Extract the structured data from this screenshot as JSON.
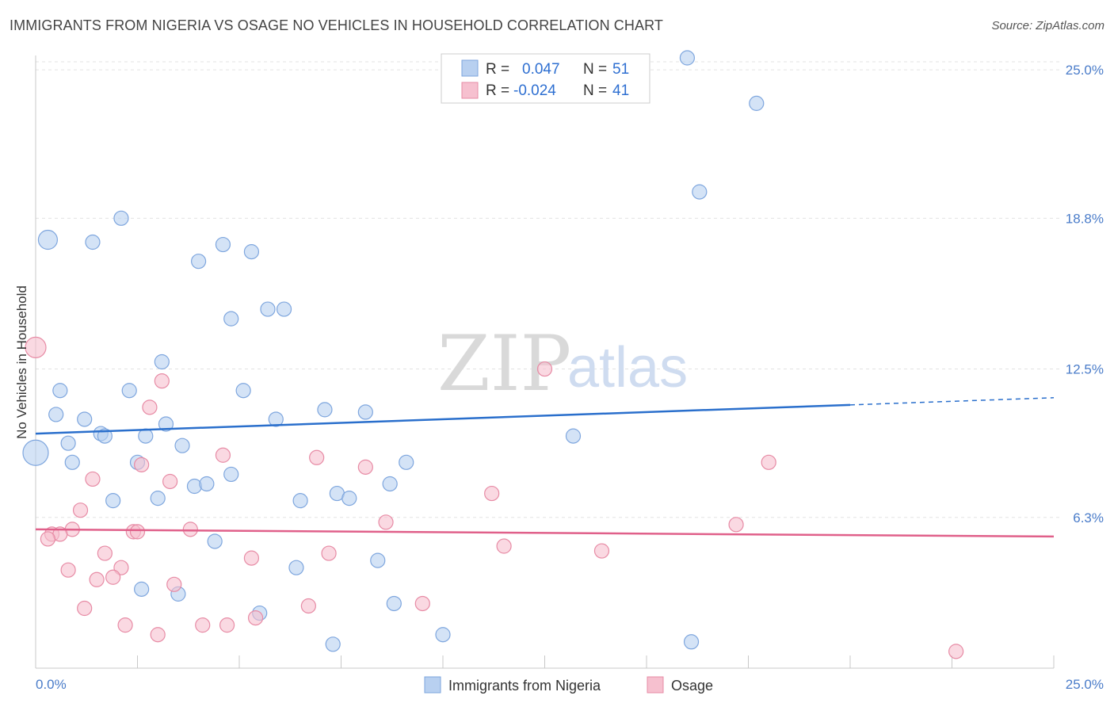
{
  "title": "IMMIGRANTS FROM NIGERIA VS OSAGE NO VEHICLES IN HOUSEHOLD CORRELATION CHART",
  "source": "Source: ZipAtlas.com",
  "watermark": {
    "part1": "ZIP",
    "part2": "atlas"
  },
  "colors": {
    "blue_fill": "#b8d0f0",
    "blue_stroke": "#7ea6de",
    "blue_line": "#2a6fcc",
    "pink_fill": "#f6c0cf",
    "pink_stroke": "#e78ba5",
    "pink_line": "#e0608a",
    "grid": "#e3e3e3",
    "axis_text": "#4a7cc9"
  },
  "legend": {
    "rows": [
      {
        "r_label": "R =",
        "r_value": "0.047",
        "n_label": "N =",
        "n_value": "51"
      },
      {
        "r_label": "R =",
        "r_value": "-0.024",
        "n_label": "N =",
        "n_value": "41"
      }
    ]
  },
  "chart_data": {
    "type": "scatter",
    "title": "IMMIGRANTS FROM NIGERIA VS OSAGE NO VEHICLES IN HOUSEHOLD CORRELATION CHART",
    "xlabel": "",
    "ylabel": "No Vehicles in Household",
    "xlim": [
      0,
      25
    ],
    "ylim": [
      0,
      25.6
    ],
    "x_tick_labels": [
      "0.0%",
      "25.0%"
    ],
    "y_ticks": [
      6.3,
      12.5,
      18.8,
      25.0
    ],
    "y_tick_labels": [
      "6.3%",
      "12.5%",
      "18.8%",
      "25.0%"
    ],
    "grid": true,
    "legend_position": "top-center",
    "series": [
      {
        "name": "Immigrants from Nigeria",
        "color": "#b8d0f0",
        "trend": {
          "x": [
            0,
            20
          ],
          "y": [
            9.8,
            11.0
          ],
          "dashed_extension": [
            20,
            25
          ]
        },
        "points": [
          [
            0.3,
            17.9,
            12
          ],
          [
            1.4,
            17.8,
            9
          ],
          [
            2.1,
            18.8,
            9
          ],
          [
            4.6,
            17.7,
            9
          ],
          [
            5.3,
            17.4,
            9
          ],
          [
            4.0,
            17.0,
            9
          ],
          [
            16.3,
            19.9,
            9
          ],
          [
            16.0,
            25.5,
            9
          ],
          [
            17.7,
            23.6,
            9
          ],
          [
            0.6,
            11.6,
            9
          ],
          [
            2.3,
            11.6,
            9
          ],
          [
            5.1,
            11.6,
            9
          ],
          [
            3.1,
            12.8,
            9
          ],
          [
            4.8,
            14.6,
            9
          ],
          [
            5.7,
            15.0,
            9
          ],
          [
            6.1,
            15.0,
            9
          ],
          [
            0.5,
            10.6,
            9
          ],
          [
            1.2,
            10.4,
            9
          ],
          [
            3.2,
            10.2,
            9
          ],
          [
            7.1,
            10.8,
            9
          ],
          [
            8.1,
            10.7,
            9
          ],
          [
            5.9,
            10.4,
            9
          ],
          [
            0.0,
            9.0,
            16
          ],
          [
            0.8,
            9.4,
            9
          ],
          [
            1.6,
            9.8,
            9
          ],
          [
            1.7,
            9.7,
            9
          ],
          [
            2.7,
            9.7,
            9
          ],
          [
            3.6,
            9.3,
            9
          ],
          [
            0.9,
            8.6,
            9
          ],
          [
            2.5,
            8.6,
            9
          ],
          [
            9.1,
            8.6,
            9
          ],
          [
            4.8,
            8.1,
            9
          ],
          [
            3.9,
            7.6,
            9
          ],
          [
            4.2,
            7.7,
            9
          ],
          [
            8.7,
            7.7,
            9
          ],
          [
            7.4,
            7.3,
            9
          ],
          [
            1.9,
            7.0,
            9
          ],
          [
            3.0,
            7.1,
            9
          ],
          [
            6.5,
            7.0,
            9
          ],
          [
            7.7,
            7.1,
            9
          ],
          [
            13.2,
            9.7,
            9
          ],
          [
            4.4,
            5.3,
            9
          ],
          [
            6.4,
            4.2,
            9
          ],
          [
            8.4,
            4.5,
            9
          ],
          [
            2.6,
            3.3,
            9
          ],
          [
            3.5,
            3.1,
            9
          ],
          [
            8.8,
            2.7,
            9
          ],
          [
            5.5,
            2.3,
            9
          ],
          [
            10.0,
            1.4,
            9
          ],
          [
            7.3,
            1.0,
            9
          ],
          [
            16.1,
            1.1,
            9
          ]
        ]
      },
      {
        "name": "Osage",
        "color": "#f6c0cf",
        "trend": {
          "x": [
            0,
            25
          ],
          "y": [
            5.8,
            5.5
          ]
        },
        "points": [
          [
            0.0,
            13.4,
            13
          ],
          [
            12.5,
            12.5,
            9
          ],
          [
            3.1,
            12.0,
            9
          ],
          [
            2.8,
            10.9,
            9
          ],
          [
            4.6,
            8.9,
            9
          ],
          [
            6.9,
            8.8,
            9
          ],
          [
            2.6,
            8.5,
            9
          ],
          [
            8.1,
            8.4,
            9
          ],
          [
            18.0,
            8.6,
            9
          ],
          [
            1.4,
            7.9,
            9
          ],
          [
            3.3,
            7.8,
            9
          ],
          [
            11.2,
            7.3,
            9
          ],
          [
            1.1,
            6.6,
            9
          ],
          [
            8.6,
            6.1,
            9
          ],
          [
            17.2,
            6.0,
            9
          ],
          [
            0.9,
            5.8,
            9
          ],
          [
            3.8,
            5.8,
            9
          ],
          [
            2.4,
            5.7,
            9
          ],
          [
            2.5,
            5.7,
            9
          ],
          [
            0.4,
            5.6,
            9
          ],
          [
            0.6,
            5.6,
            9
          ],
          [
            0.3,
            5.4,
            9
          ],
          [
            11.5,
            5.1,
            9
          ],
          [
            1.7,
            4.8,
            9
          ],
          [
            7.2,
            4.8,
            9
          ],
          [
            13.9,
            4.9,
            9
          ],
          [
            5.3,
            4.6,
            9
          ],
          [
            2.1,
            4.2,
            9
          ],
          [
            0.8,
            4.1,
            9
          ],
          [
            1.5,
            3.7,
            9
          ],
          [
            1.9,
            3.8,
            9
          ],
          [
            3.4,
            3.5,
            9
          ],
          [
            6.7,
            2.6,
            9
          ],
          [
            9.5,
            2.7,
            9
          ],
          [
            1.2,
            2.5,
            9
          ],
          [
            5.4,
            2.1,
            9
          ],
          [
            2.2,
            1.8,
            9
          ],
          [
            4.1,
            1.8,
            9
          ],
          [
            4.7,
            1.8,
            9
          ],
          [
            3.0,
            1.4,
            9
          ],
          [
            22.6,
            0.7,
            9
          ]
        ]
      }
    ]
  }
}
